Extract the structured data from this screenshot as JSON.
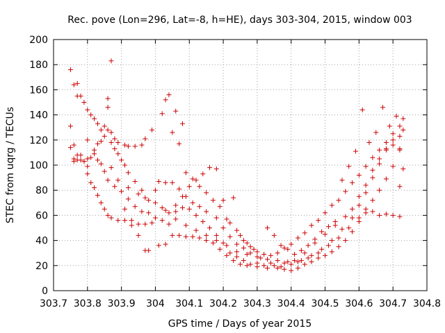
{
  "chart_data": {
    "type": "scatter",
    "title": "Rec. pove (Lon=296, Lat=-8, h=HE), days 303-304, 2015, window 003",
    "xlabel": "GPS time / Days of year 2015",
    "ylabel": "STEC from uqrg / TECUs",
    "xlim": [
      303.7,
      304.8
    ],
    "ylim": [
      0,
      200
    ],
    "x_ticks": [
      "303.7",
      "303.8",
      "303.9",
      "304",
      "304.1",
      "304.2",
      "304.3",
      "304.4",
      "304.5",
      "304.6",
      "304.7",
      "304.8"
    ],
    "y_ticks": [
      "0",
      "20",
      "40",
      "60",
      "80",
      "100",
      "120",
      "140",
      "160",
      "180",
      "200"
    ],
    "grid": true,
    "marker": "+",
    "color": "#cc0000",
    "series": [
      {
        "points": [
          [
            303.75,
            176
          ],
          [
            303.76,
            164
          ],
          [
            303.77,
            165
          ],
          [
            303.77,
            155
          ],
          [
            303.78,
            155
          ],
          [
            303.79,
            150
          ],
          [
            303.8,
            144
          ],
          [
            303.81,
            140
          ],
          [
            303.82,
            137
          ],
          [
            303.83,
            133
          ],
          [
            303.84,
            128
          ],
          [
            303.85,
            123
          ],
          [
            303.87,
            118
          ],
          [
            303.88,
            113
          ],
          [
            303.89,
            109
          ],
          [
            303.9,
            104
          ],
          [
            303.91,
            100
          ],
          [
            303.92,
            94
          ],
          [
            303.94,
            87
          ],
          [
            303.96,
            80
          ],
          [
            303.98,
            72
          ],
          [
            304.0,
            70
          ],
          [
            304.03,
            64
          ],
          [
            304.06,
            57
          ],
          [
            304.09,
            52
          ],
          [
            304.12,
            48
          ],
          [
            304.15,
            44
          ],
          [
            304.18,
            40
          ],
          [
            304.21,
            36
          ],
          [
            304.24,
            31
          ],
          [
            304.27,
            29
          ],
          [
            304.3,
            27
          ],
          [
            304.33,
            25
          ],
          [
            304.36,
            24
          ],
          [
            304.39,
            23
          ],
          [
            304.42,
            23
          ],
          [
            304.45,
            26
          ],
          [
            304.48,
            30
          ],
          [
            304.51,
            36
          ],
          [
            304.54,
            42
          ],
          [
            304.57,
            50
          ],
          [
            304.6,
            58
          ],
          [
            304.62,
            65
          ],
          [
            304.64,
            72
          ],
          [
            304.66,
            80
          ],
          [
            304.68,
            89
          ],
          [
            304.7,
            99
          ],
          [
            304.72,
            112
          ],
          [
            304.73,
            128
          ],
          [
            304.73,
            137
          ],
          [
            303.75,
            131
          ],
          [
            303.76,
            116
          ],
          [
            303.77,
            108
          ],
          [
            303.78,
            104
          ],
          [
            303.79,
            103
          ],
          [
            303.8,
            105
          ],
          [
            303.81,
            106
          ],
          [
            303.82,
            112
          ],
          [
            303.83,
            117
          ],
          [
            303.84,
            119
          ],
          [
            303.85,
            131
          ],
          [
            303.86,
            128
          ],
          [
            303.87,
            126
          ],
          [
            303.88,
            121
          ],
          [
            303.89,
            118
          ],
          [
            303.91,
            116
          ],
          [
            303.92,
            115
          ],
          [
            303.94,
            115
          ],
          [
            303.96,
            116
          ],
          [
            303.97,
            121
          ],
          [
            303.99,
            128
          ],
          [
            304.01,
            87
          ],
          [
            304.03,
            86
          ],
          [
            304.05,
            86
          ],
          [
            304.07,
            81
          ],
          [
            304.09,
            75
          ],
          [
            304.11,
            70
          ],
          [
            304.13,
            67
          ],
          [
            304.15,
            63
          ],
          [
            304.18,
            58
          ],
          [
            304.2,
            50
          ],
          [
            304.22,
            43
          ],
          [
            304.24,
            37
          ],
          [
            304.26,
            34
          ],
          [
            304.28,
            30
          ],
          [
            304.31,
            26
          ],
          [
            304.34,
            22
          ],
          [
            304.37,
            19
          ],
          [
            304.4,
            21
          ],
          [
            304.43,
            24
          ],
          [
            304.46,
            28
          ],
          [
            304.49,
            33
          ],
          [
            304.52,
            40
          ],
          [
            304.55,
            49
          ],
          [
            304.58,
            58
          ],
          [
            304.6,
            68
          ],
          [
            304.62,
            78
          ],
          [
            304.64,
            90
          ],
          [
            304.66,
            101
          ],
          [
            304.68,
            112
          ],
          [
            304.7,
            120
          ],
          [
            304.72,
            123
          ],
          [
            303.75,
            114
          ],
          [
            303.76,
            103
          ],
          [
            303.77,
            104
          ],
          [
            303.79,
            103
          ],
          [
            303.8,
            93
          ],
          [
            303.81,
            86
          ],
          [
            303.82,
            82
          ],
          [
            303.83,
            76
          ],
          [
            303.84,
            70
          ],
          [
            303.85,
            65
          ],
          [
            303.86,
            60
          ],
          [
            303.87,
            58
          ],
          [
            303.89,
            56
          ],
          [
            303.91,
            56
          ],
          [
            303.93,
            56
          ],
          [
            303.95,
            53
          ],
          [
            303.97,
            53
          ],
          [
            303.99,
            54
          ],
          [
            304.01,
            36
          ],
          [
            304.03,
            37
          ],
          [
            304.05,
            44
          ],
          [
            304.07,
            44
          ],
          [
            304.09,
            43
          ],
          [
            304.11,
            43
          ],
          [
            304.13,
            42
          ],
          [
            304.15,
            40
          ],
          [
            304.17,
            38
          ],
          [
            304.19,
            33
          ],
          [
            304.21,
            28
          ],
          [
            304.23,
            24
          ],
          [
            304.25,
            21
          ],
          [
            304.27,
            20
          ],
          [
            304.3,
            19
          ],
          [
            304.33,
            18
          ],
          [
            304.36,
            18
          ],
          [
            304.38,
            17
          ],
          [
            304.4,
            16
          ],
          [
            304.42,
            18
          ],
          [
            304.44,
            21
          ],
          [
            304.46,
            23
          ],
          [
            304.48,
            26
          ],
          [
            304.5,
            28
          ],
          [
            304.52,
            31
          ],
          [
            304.54,
            35
          ],
          [
            304.56,
            40
          ],
          [
            304.58,
            47
          ],
          [
            304.6,
            55
          ],
          [
            304.62,
            62
          ],
          [
            304.64,
            63
          ],
          [
            304.66,
            60
          ],
          [
            304.68,
            61
          ],
          [
            304.7,
            60
          ],
          [
            304.72,
            59
          ],
          [
            303.76,
            105
          ],
          [
            303.78,
            108
          ],
          [
            303.8,
            99
          ],
          [
            303.82,
            109
          ],
          [
            303.83,
            104
          ],
          [
            303.85,
            95
          ],
          [
            303.86,
            88
          ],
          [
            303.88,
            83
          ],
          [
            303.9,
            79
          ],
          [
            303.92,
            73
          ],
          [
            303.94,
            67
          ],
          [
            303.96,
            63
          ],
          [
            303.98,
            62
          ],
          [
            304.0,
            58
          ],
          [
            304.02,
            56
          ],
          [
            304.04,
            53
          ],
          [
            304.06,
            63
          ],
          [
            304.08,
            66
          ],
          [
            304.1,
            65
          ],
          [
            304.12,
            60
          ],
          [
            304.14,
            55
          ],
          [
            304.16,
            50
          ],
          [
            304.18,
            44
          ],
          [
            304.2,
            38
          ],
          [
            304.22,
            30
          ],
          [
            304.24,
            27
          ],
          [
            304.26,
            24
          ],
          [
            304.28,
            21
          ],
          [
            304.3,
            22
          ],
          [
            304.32,
            20
          ],
          [
            304.35,
            20
          ],
          [
            304.38,
            22
          ],
          [
            304.41,
            24
          ],
          [
            304.44,
            30
          ],
          [
            304.47,
            38
          ],
          [
            304.5,
            45
          ],
          [
            304.53,
            52
          ],
          [
            304.56,
            59
          ],
          [
            304.58,
            65
          ],
          [
            304.6,
            75
          ],
          [
            304.62,
            84
          ],
          [
            304.64,
            96
          ],
          [
            304.66,
            105
          ],
          [
            304.68,
            113
          ],
          [
            304.7,
            116
          ],
          [
            304.72,
            113
          ],
          [
            303.8,
            120
          ],
          [
            303.84,
            101
          ],
          [
            303.87,
            98
          ],
          [
            303.89,
            88
          ],
          [
            303.92,
            82
          ],
          [
            303.95,
            77
          ],
          [
            303.97,
            74
          ],
          [
            304.0,
            80
          ],
          [
            304.02,
            66
          ],
          [
            304.04,
            62
          ],
          [
            304.06,
            68
          ],
          [
            304.08,
            75
          ],
          [
            304.1,
            83
          ],
          [
            304.12,
            88
          ],
          [
            304.14,
            93
          ],
          [
            304.16,
            98
          ],
          [
            304.18,
            97
          ],
          [
            304.2,
            72
          ],
          [
            304.22,
            54
          ],
          [
            304.24,
            48
          ],
          [
            304.26,
            40
          ],
          [
            304.28,
            35
          ],
          [
            304.3,
            31
          ],
          [
            304.32,
            29
          ],
          [
            304.34,
            28
          ],
          [
            304.36,
            30
          ],
          [
            304.38,
            34
          ],
          [
            304.4,
            37
          ],
          [
            304.42,
            42
          ],
          [
            304.44,
            46
          ],
          [
            304.46,
            52
          ],
          [
            304.48,
            56
          ],
          [
            304.5,
            62
          ],
          [
            304.52,
            68
          ],
          [
            304.54,
            72
          ],
          [
            304.56,
            79
          ],
          [
            304.58,
            86
          ],
          [
            304.6,
            92
          ],
          [
            304.62,
            99
          ],
          [
            304.64,
            106
          ],
          [
            304.66,
            112
          ],
          [
            304.68,
            118
          ],
          [
            304.7,
            125
          ],
          [
            304.72,
            131
          ],
          [
            303.87,
            183
          ],
          [
            303.86,
            153
          ],
          [
            303.86,
            146
          ],
          [
            304.02,
            141
          ],
          [
            304.03,
            152
          ],
          [
            304.04,
            156
          ],
          [
            304.05,
            126
          ],
          [
            304.06,
            143
          ],
          [
            304.07,
            117
          ],
          [
            304.08,
            133
          ],
          [
            303.91,
            65
          ],
          [
            303.93,
            52
          ],
          [
            303.95,
            44
          ],
          [
            303.97,
            32
          ],
          [
            303.98,
            32
          ],
          [
            304.09,
            94
          ],
          [
            304.11,
            89
          ],
          [
            304.13,
            83
          ],
          [
            304.15,
            78
          ],
          [
            304.17,
            72
          ],
          [
            304.19,
            67
          ],
          [
            304.21,
            57
          ],
          [
            304.23,
            74
          ],
          [
            304.25,
            44
          ],
          [
            304.27,
            38
          ],
          [
            304.29,
            33
          ],
          [
            304.33,
            50
          ],
          [
            304.35,
            44
          ],
          [
            304.37,
            36
          ],
          [
            304.39,
            33
          ],
          [
            304.41,
            29
          ],
          [
            304.43,
            32
          ],
          [
            304.45,
            36
          ],
          [
            304.47,
            41
          ],
          [
            304.49,
            47
          ],
          [
            304.51,
            51
          ],
          [
            304.53,
            55
          ],
          [
            304.55,
            88
          ],
          [
            304.57,
            99
          ],
          [
            304.59,
            111
          ],
          [
            304.61,
            144
          ],
          [
            304.63,
            118
          ],
          [
            304.65,
            126
          ],
          [
            304.67,
            146
          ],
          [
            304.69,
            131
          ],
          [
            304.71,
            139
          ],
          [
            304.72,
            83
          ],
          [
            304.73,
            97
          ]
        ]
      }
    ]
  }
}
